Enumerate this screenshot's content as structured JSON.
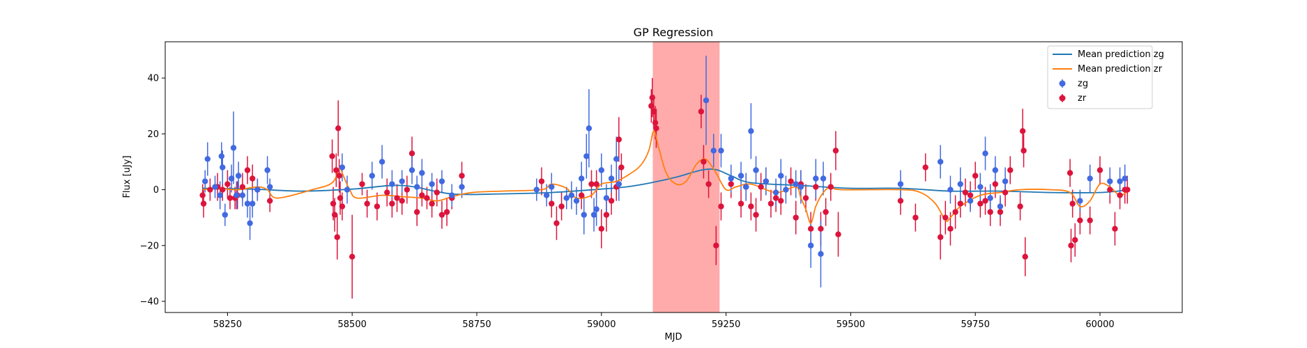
{
  "chart_data": {
    "type": "scatter",
    "title": "GP Regression",
    "xlabel": "MJD",
    "ylabel": "Flux [uJy]",
    "xlim": [
      58125,
      60165
    ],
    "ylim": [
      -44,
      53
    ],
    "xticks": [
      58250,
      58500,
      58750,
      59000,
      59250,
      59500,
      59750,
      60000
    ],
    "yticks": [
      -40,
      -20,
      0,
      20,
      40
    ],
    "grid": false,
    "legend_position": "top-right",
    "shaded_region": {
      "x": [
        59103,
        59237
      ],
      "color": "#ff0000",
      "opacity": 0.33
    },
    "colors": {
      "zg_points": "#4169e1",
      "zr_points": "#dc143c",
      "zg_line": "#1f77b4",
      "zr_line": "#ff7f0e"
    },
    "lines": [
      {
        "name": "Mean prediction zg",
        "x": [
          58200,
          58300,
          58400,
          58500,
          58600,
          58700,
          58800,
          58900,
          59000,
          59050,
          59100,
          59150,
          59200,
          59230,
          59260,
          59300,
          59400,
          59500,
          59600,
          59700,
          59800,
          59900,
          60000,
          60060
        ],
        "y": [
          0.5,
          0.2,
          -0.5,
          0.2,
          1.5,
          -1.5,
          -1.5,
          -1.0,
          0.2,
          1.0,
          2.5,
          4.5,
          7.0,
          7.2,
          5.0,
          2.5,
          1.5,
          0.5,
          0.5,
          -0.5,
          -0.5,
          -1.0,
          -1.0,
          0.0
        ]
      },
      {
        "name": "Mean prediction zr",
        "x": [
          58200,
          58230,
          58270,
          58310,
          58330,
          58350,
          58420,
          58460,
          58475,
          58480,
          58495,
          58510,
          58560,
          58600,
          58640,
          58670,
          58700,
          58740,
          58800,
          58880,
          58900,
          58930,
          58950,
          58980,
          59000,
          59030,
          59060,
          59080,
          59095,
          59105,
          59115,
          59130,
          59150,
          59170,
          59190,
          59205,
          59215,
          59230,
          59250,
          59270,
          59300,
          59350,
          59390,
          59400,
          59410,
          59420,
          59430,
          59445,
          59460,
          59480,
          59600,
          59640,
          59670,
          59690,
          59700,
          59720,
          59760,
          59800,
          59840,
          59900,
          59940,
          59960,
          59980,
          60000,
          60020,
          60040,
          60060
        ],
        "y": [
          0,
          0.5,
          0,
          1,
          0,
          -3,
          0,
          2.5,
          8,
          6,
          0,
          -3,
          -2,
          -2.5,
          -3,
          -4,
          -2.5,
          -1,
          -0.5,
          0,
          2,
          0.5,
          -3,
          -2,
          2,
          3,
          6,
          9,
          14,
          21,
          15,
          6,
          2,
          3,
          9,
          11,
          10,
          6,
          0,
          1,
          2,
          -1,
          1,
          -3,
          -7,
          -12,
          -6,
          -1,
          1,
          0,
          0,
          -1,
          -5,
          -11,
          -10,
          -6,
          -2,
          -1,
          0,
          0,
          -1,
          -6,
          -4,
          2,
          1,
          -2,
          0
        ]
      }
    ],
    "series": [
      {
        "name": "zg",
        "points": [
          [
            58205,
            3,
            4
          ],
          [
            58210,
            11,
            6
          ],
          [
            58225,
            1,
            4
          ],
          [
            58235,
            -2,
            5
          ],
          [
            58238,
            12,
            5
          ],
          [
            58240,
            8,
            6
          ],
          [
            58245,
            -9,
            4
          ],
          [
            58258,
            4,
            5
          ],
          [
            58262,
            15,
            13
          ],
          [
            58268,
            -2,
            5
          ],
          [
            58272,
            5,
            5
          ],
          [
            58280,
            -2,
            4
          ],
          [
            58290,
            -5,
            5
          ],
          [
            58295,
            -12,
            6
          ],
          [
            58300,
            -5,
            5
          ],
          [
            58310,
            0,
            4
          ],
          [
            58330,
            7,
            5
          ],
          [
            58335,
            1,
            3
          ],
          [
            58480,
            8,
            5
          ],
          [
            58490,
            0,
            5
          ],
          [
            58540,
            5,
            5
          ],
          [
            58560,
            10,
            6
          ],
          [
            58580,
            2,
            5
          ],
          [
            58600,
            3,
            4
          ],
          [
            58620,
            7,
            5
          ],
          [
            58630,
            1,
            4
          ],
          [
            58640,
            6,
            5
          ],
          [
            58660,
            2,
            4
          ],
          [
            58680,
            3,
            4
          ],
          [
            58700,
            -2,
            4
          ],
          [
            58720,
            1,
            4
          ],
          [
            58870,
            0,
            4
          ],
          [
            58890,
            -2,
            4
          ],
          [
            58900,
            1,
            5
          ],
          [
            58930,
            -3,
            4
          ],
          [
            58940,
            -2,
            5
          ],
          [
            58950,
            -4,
            5
          ],
          [
            58960,
            4,
            6
          ],
          [
            58965,
            -9,
            7
          ],
          [
            58970,
            12,
            8
          ],
          [
            58975,
            22,
            14
          ],
          [
            58985,
            -9,
            6
          ],
          [
            58990,
            -7,
            6
          ],
          [
            59000,
            7,
            6
          ],
          [
            59010,
            -3,
            5
          ],
          [
            59020,
            4,
            5
          ],
          [
            59030,
            11,
            8
          ],
          [
            59035,
            2,
            6
          ],
          [
            59210,
            32,
            16
          ],
          [
            59225,
            14,
            6
          ],
          [
            59240,
            14,
            6
          ],
          [
            59260,
            4,
            5
          ],
          [
            59280,
            5,
            5
          ],
          [
            59290,
            1,
            5
          ],
          [
            59300,
            21,
            10
          ],
          [
            59310,
            7,
            5
          ],
          [
            59330,
            3,
            5
          ],
          [
            59350,
            -1,
            5
          ],
          [
            59360,
            5,
            6
          ],
          [
            59370,
            0,
            5
          ],
          [
            59390,
            2,
            5
          ],
          [
            59400,
            1,
            6
          ],
          [
            59420,
            -20,
            8
          ],
          [
            59430,
            4,
            7
          ],
          [
            59440,
            -23,
            12
          ],
          [
            59445,
            4,
            6
          ],
          [
            59600,
            2,
            5
          ],
          [
            59680,
            10,
            6
          ],
          [
            59700,
            0,
            5
          ],
          [
            59720,
            2,
            6
          ],
          [
            59740,
            -4,
            4
          ],
          [
            59760,
            1,
            5
          ],
          [
            59770,
            13,
            6
          ],
          [
            59780,
            -3,
            5
          ],
          [
            59790,
            7,
            5
          ],
          [
            59800,
            -6,
            4
          ],
          [
            59810,
            3,
            5
          ],
          [
            59960,
            -4,
            4
          ],
          [
            59980,
            4,
            5
          ],
          [
            60020,
            3,
            5
          ],
          [
            60040,
            3,
            5
          ],
          [
            60050,
            4,
            5
          ]
        ]
      },
      {
        "name": "zr",
        "points": [
          [
            58200,
            -2,
            4
          ],
          [
            58202,
            -5,
            5
          ],
          [
            58215,
            0,
            4
          ],
          [
            58230,
            1,
            5
          ],
          [
            58240,
            0,
            4
          ],
          [
            58250,
            2,
            5
          ],
          [
            58255,
            -3,
            4
          ],
          [
            58265,
            -3,
            4
          ],
          [
            58270,
            -2,
            5
          ],
          [
            58280,
            1,
            5
          ],
          [
            58290,
            7,
            5
          ],
          [
            58300,
            4,
            5
          ],
          [
            58310,
            0,
            4
          ],
          [
            58335,
            -4,
            4
          ],
          [
            58460,
            12,
            6
          ],
          [
            58462,
            -5,
            6
          ],
          [
            58465,
            -9,
            6
          ],
          [
            58468,
            7,
            6
          ],
          [
            58470,
            -17,
            8
          ],
          [
            58472,
            22,
            10
          ],
          [
            58474,
            5,
            6
          ],
          [
            58476,
            -3,
            6
          ],
          [
            58480,
            -6,
            5
          ],
          [
            58500,
            -24,
            15
          ],
          [
            58520,
            2,
            4
          ],
          [
            58530,
            -5,
            5
          ],
          [
            58550,
            -6,
            5
          ],
          [
            58570,
            -1,
            5
          ],
          [
            58580,
            -5,
            5
          ],
          [
            58590,
            -3,
            5
          ],
          [
            58600,
            -4,
            5
          ],
          [
            58610,
            0,
            5
          ],
          [
            58620,
            13,
            6
          ],
          [
            58630,
            -8,
            5
          ],
          [
            58640,
            -2,
            4
          ],
          [
            58650,
            -3,
            4
          ],
          [
            58660,
            -5,
            5
          ],
          [
            58670,
            -1,
            5
          ],
          [
            58680,
            -9,
            5
          ],
          [
            58690,
            -8,
            5
          ],
          [
            58700,
            -3,
            4
          ],
          [
            58720,
            5,
            5
          ],
          [
            58880,
            3,
            5
          ],
          [
            58900,
            -5,
            5
          ],
          [
            58910,
            -12,
            6
          ],
          [
            58920,
            -6,
            5
          ],
          [
            58960,
            -2,
            5
          ],
          [
            58980,
            2,
            5
          ],
          [
            58990,
            2,
            5
          ],
          [
            59000,
            -14,
            7
          ],
          [
            59010,
            -9,
            6
          ],
          [
            59020,
            -4,
            5
          ],
          [
            59030,
            1,
            5
          ],
          [
            59035,
            18,
            8
          ],
          [
            59040,
            8,
            5
          ],
          [
            59100,
            30,
            6
          ],
          [
            59102,
            33,
            7
          ],
          [
            59105,
            28,
            6
          ],
          [
            59108,
            24,
            6
          ],
          [
            59110,
            22,
            7
          ],
          [
            59200,
            28,
            6
          ],
          [
            59205,
            10,
            6
          ],
          [
            59215,
            2,
            5
          ],
          [
            59230,
            -20,
            7
          ],
          [
            59240,
            -6,
            5
          ],
          [
            59260,
            2,
            5
          ],
          [
            59280,
            -5,
            5
          ],
          [
            59290,
            1,
            5
          ],
          [
            59300,
            -6,
            5
          ],
          [
            59310,
            -9,
            6
          ],
          [
            59320,
            1,
            5
          ],
          [
            59330,
            3,
            5
          ],
          [
            59340,
            -5,
            5
          ],
          [
            59350,
            -3,
            5
          ],
          [
            59360,
            -4,
            5
          ],
          [
            59380,
            3,
            5
          ],
          [
            59390,
            -10,
            6
          ],
          [
            59400,
            2,
            5
          ],
          [
            59410,
            -3,
            5
          ],
          [
            59420,
            -14,
            6
          ],
          [
            59430,
            1,
            5
          ],
          [
            59440,
            -14,
            6
          ],
          [
            59450,
            -8,
            5
          ],
          [
            59460,
            1,
            5
          ],
          [
            59470,
            14,
            7
          ],
          [
            59475,
            -16,
            8
          ],
          [
            59600,
            -4,
            5
          ],
          [
            59630,
            -10,
            5
          ],
          [
            59650,
            8,
            5
          ],
          [
            59680,
            -17,
            8
          ],
          [
            59690,
            -10,
            6
          ],
          [
            59700,
            -14,
            6
          ],
          [
            59710,
            -8,
            6
          ],
          [
            59720,
            -5,
            5
          ],
          [
            59730,
            -1,
            5
          ],
          [
            59740,
            -2,
            5
          ],
          [
            59750,
            5,
            5
          ],
          [
            59760,
            -5,
            5
          ],
          [
            59770,
            -4,
            5
          ],
          [
            59780,
            -8,
            5
          ],
          [
            59790,
            2,
            5
          ],
          [
            59800,
            -8,
            5
          ],
          [
            59810,
            -1,
            5
          ],
          [
            59820,
            7,
            5
          ],
          [
            59840,
            -6,
            5
          ],
          [
            59845,
            21,
            8
          ],
          [
            59847,
            14,
            6
          ],
          [
            59850,
            -24,
            7
          ],
          [
            59940,
            6,
            5
          ],
          [
            59942,
            -20,
            6
          ],
          [
            59945,
            -5,
            5
          ],
          [
            59950,
            -18,
            6
          ],
          [
            59960,
            -11,
            5
          ],
          [
            59980,
            -11,
            5
          ],
          [
            60000,
            7,
            5
          ],
          [
            60020,
            0,
            5
          ],
          [
            60030,
            -14,
            6
          ],
          [
            60040,
            -2,
            5
          ],
          [
            60050,
            0,
            5
          ],
          [
            60055,
            0,
            5
          ]
        ]
      }
    ]
  }
}
